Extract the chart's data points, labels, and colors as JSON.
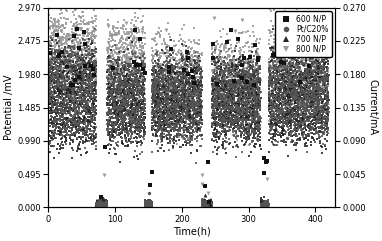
{
  "title": "",
  "xlabel": "Time(h)",
  "ylabel_left": "Potential /mV",
  "ylabel_right": "Current/mA",
  "xlim": [
    0,
    430
  ],
  "ylim_left": [
    0.0,
    2.97
  ],
  "ylim_right": [
    0.0,
    0.27
  ],
  "yticks_left": [
    0.0,
    0.495,
    0.99,
    1.485,
    1.98,
    2.475,
    2.97
  ],
  "yticks_right": [
    0.0,
    0.045,
    0.09,
    0.135,
    0.18,
    0.225,
    0.27
  ],
  "xticks": [
    0,
    100,
    200,
    300,
    400
  ],
  "legend_labels": [
    "600 N/P",
    "Pt/C20%",
    "700 N/P",
    "800 N/P"
  ],
  "legend_markers": [
    "s",
    "o",
    "^",
    "v"
  ],
  "color_600": "#111111",
  "color_ptc": "#555555",
  "color_700": "#222222",
  "color_800": "#999999",
  "background_color": "#ffffff",
  "seed": 42
}
